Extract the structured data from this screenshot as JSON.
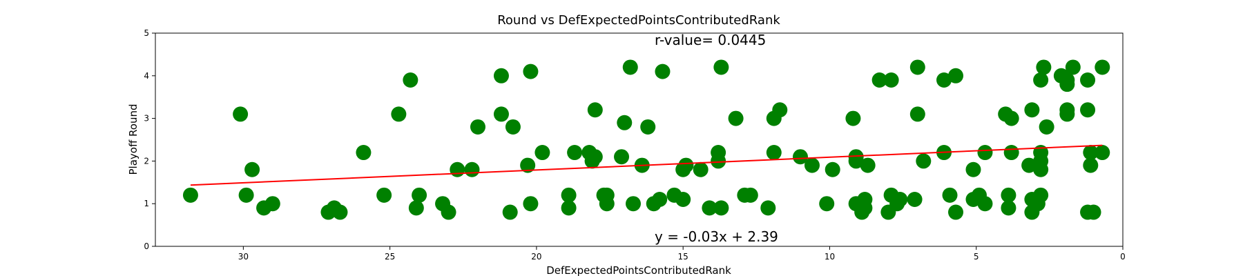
{
  "chart_data": {
    "type": "scatter",
    "title": "Round vs DefExpectedPointsContributedRank",
    "xlabel": "DefExpectedPointsContributedRank",
    "ylabel": "Playoff Round",
    "xlim": [
      33,
      0
    ],
    "ylim": [
      0,
      5
    ],
    "x_inverted": true,
    "xticks": [
      30,
      25,
      20,
      15,
      10,
      5,
      0
    ],
    "yticks": [
      0,
      1,
      2,
      3,
      4,
      5
    ],
    "grid": false,
    "point_color": "#008000",
    "line_color": "#ff0000",
    "r_value_text": "r-value= 0.0445",
    "r_value_color": "#800080",
    "equation_text": "y = -0.03x + 2.39",
    "equation_color": "#ff0000",
    "fit": {
      "slope": -0.03,
      "intercept": 2.39,
      "x_range": [
        31.8,
        0.7
      ]
    },
    "points": [
      [
        31.8,
        1.2
      ],
      [
        30.1,
        3.1
      ],
      [
        29.9,
        1.2
      ],
      [
        29.7,
        1.8
      ],
      [
        29.3,
        0.9
      ],
      [
        29.0,
        1.0
      ],
      [
        27.1,
        0.8
      ],
      [
        26.9,
        0.9
      ],
      [
        26.7,
        0.8
      ],
      [
        25.9,
        2.2
      ],
      [
        25.2,
        1.2
      ],
      [
        24.7,
        3.1
      ],
      [
        24.3,
        3.9
      ],
      [
        24.1,
        0.9
      ],
      [
        24.0,
        1.2
      ],
      [
        23.2,
        1.0
      ],
      [
        23.0,
        0.8
      ],
      [
        22.7,
        1.8
      ],
      [
        22.2,
        1.8
      ],
      [
        22.0,
        2.8
      ],
      [
        21.2,
        4.0
      ],
      [
        21.2,
        3.1
      ],
      [
        20.8,
        2.8
      ],
      [
        20.9,
        0.8
      ],
      [
        20.3,
        1.9
      ],
      [
        20.2,
        4.1
      ],
      [
        20.2,
        1.0
      ],
      [
        19.8,
        2.2
      ],
      [
        18.9,
        1.2
      ],
      [
        18.9,
        0.9
      ],
      [
        18.7,
        2.2
      ],
      [
        18.2,
        2.2
      ],
      [
        18.1,
        2.0
      ],
      [
        18.0,
        2.1
      ],
      [
        18.0,
        3.2
      ],
      [
        17.7,
        1.2
      ],
      [
        17.6,
        1.2
      ],
      [
        17.6,
        1.0
      ],
      [
        17.1,
        2.1
      ],
      [
        17.0,
        2.9
      ],
      [
        16.8,
        4.2
      ],
      [
        16.7,
        1.0
      ],
      [
        16.4,
        1.9
      ],
      [
        16.2,
        2.8
      ],
      [
        16.0,
        1.0
      ],
      [
        15.8,
        1.1
      ],
      [
        15.7,
        4.1
      ],
      [
        15.3,
        1.2
      ],
      [
        15.0,
        1.8
      ],
      [
        14.9,
        1.9
      ],
      [
        15.0,
        1.1
      ],
      [
        14.4,
        1.8
      ],
      [
        14.1,
        0.9
      ],
      [
        13.8,
        2.2
      ],
      [
        13.8,
        2.0
      ],
      [
        13.7,
        0.9
      ],
      [
        13.7,
        4.2
      ],
      [
        13.2,
        3.0
      ],
      [
        12.9,
        1.2
      ],
      [
        12.7,
        1.2
      ],
      [
        12.1,
        0.9
      ],
      [
        11.9,
        2.2
      ],
      [
        11.9,
        3.0
      ],
      [
        11.7,
        3.2
      ],
      [
        11.0,
        2.1
      ],
      [
        10.6,
        1.9
      ],
      [
        10.1,
        1.0
      ],
      [
        9.9,
        1.8
      ],
      [
        9.2,
        3.0
      ],
      [
        9.1,
        2.1
      ],
      [
        9.1,
        2.0
      ],
      [
        9.1,
        1.0
      ],
      [
        8.9,
        0.8
      ],
      [
        8.8,
        0.9
      ],
      [
        8.8,
        1.1
      ],
      [
        8.7,
        1.9
      ],
      [
        8.3,
        3.9
      ],
      [
        7.9,
        3.9
      ],
      [
        8.0,
        0.8
      ],
      [
        7.9,
        1.2
      ],
      [
        7.7,
        1.0
      ],
      [
        7.6,
        1.1
      ],
      [
        7.1,
        1.1
      ],
      [
        7.0,
        4.2
      ],
      [
        7.0,
        3.1
      ],
      [
        6.8,
        2.0
      ],
      [
        6.1,
        3.9
      ],
      [
        6.1,
        2.2
      ],
      [
        5.9,
        1.2
      ],
      [
        5.7,
        4.0
      ],
      [
        5.7,
        0.8
      ],
      [
        5.1,
        1.8
      ],
      [
        5.1,
        1.1
      ],
      [
        4.9,
        1.2
      ],
      [
        4.7,
        1.0
      ],
      [
        4.7,
        2.2
      ],
      [
        4.0,
        3.1
      ],
      [
        3.9,
        1.2
      ],
      [
        3.9,
        0.9
      ],
      [
        3.8,
        3.0
      ],
      [
        3.8,
        2.2
      ],
      [
        3.2,
        1.9
      ],
      [
        3.1,
        3.2
      ],
      [
        3.1,
        1.1
      ],
      [
        3.1,
        0.8
      ],
      [
        2.9,
        1.0
      ],
      [
        2.8,
        2.0
      ],
      [
        2.8,
        1.8
      ],
      [
        2.8,
        1.2
      ],
      [
        2.8,
        2.2
      ],
      [
        2.8,
        3.9
      ],
      [
        2.7,
        4.2
      ],
      [
        2.6,
        2.8
      ],
      [
        2.1,
        4.0
      ],
      [
        1.9,
        3.9
      ],
      [
        1.9,
        3.8
      ],
      [
        1.9,
        3.2
      ],
      [
        1.9,
        3.1
      ],
      [
        1.7,
        4.2
      ],
      [
        1.2,
        0.8
      ],
      [
        1.2,
        3.9
      ],
      [
        1.2,
        3.2
      ],
      [
        1.1,
        2.2
      ],
      [
        1.1,
        1.9
      ],
      [
        1.0,
        0.8
      ],
      [
        0.7,
        4.2
      ],
      [
        0.7,
        2.2
      ]
    ]
  }
}
